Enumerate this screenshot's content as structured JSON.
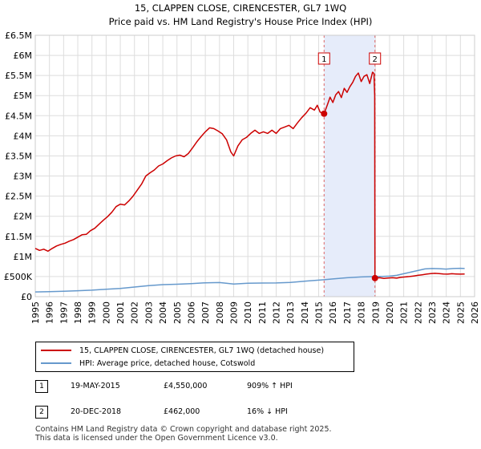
{
  "chart_data": {
    "type": "line",
    "title": "15, CLAPPEN CLOSE, CIRENCESTER, GL7 1WQ",
    "subtitle": "Price paid vs. HM Land Registry's House Price Index (HPI)",
    "x_range": [
      1995,
      2026
    ],
    "ylim": [
      0,
      6500000
    ],
    "x_ticks": [
      "1995",
      "1996",
      "1997",
      "1998",
      "1999",
      "2000",
      "2001",
      "2002",
      "2003",
      "2004",
      "2005",
      "2006",
      "2007",
      "2008",
      "2009",
      "2010",
      "2011",
      "2012",
      "2013",
      "2014",
      "2015",
      "2016",
      "2017",
      "2018",
      "2019",
      "2020",
      "2021",
      "2022",
      "2023",
      "2024",
      "2025",
      "2026"
    ],
    "y_ticks": [
      {
        "value": 0,
        "label": "£0"
      },
      {
        "value": 500000,
        "label": "£500K"
      },
      {
        "value": 1000000,
        "label": "£1M"
      },
      {
        "value": 1500000,
        "label": "£1.5M"
      },
      {
        "value": 2000000,
        "label": "£2M"
      },
      {
        "value": 2500000,
        "label": "£2.5M"
      },
      {
        "value": 3000000,
        "label": "£3M"
      },
      {
        "value": 3500000,
        "label": "£3.5M"
      },
      {
        "value": 4000000,
        "label": "£4M"
      },
      {
        "value": 4500000,
        "label": "£4.5M"
      },
      {
        "value": 5000000,
        "label": "£5M"
      },
      {
        "value": 5500000,
        "label": "£5.5M"
      },
      {
        "value": 6000000,
        "label": "£6M"
      },
      {
        "value": 6500000,
        "label": "£6.5M"
      }
    ],
    "shaded_range": [
      2015.38,
      2018.97
    ],
    "series": [
      {
        "name": "15, CLAPPEN CLOSE, CIRENCESTER, GL7 1WQ (detached house)",
        "color": "#cc0000",
        "points": [
          [
            1995.0,
            1200000
          ],
          [
            1995.3,
            1150000
          ],
          [
            1995.6,
            1180000
          ],
          [
            1995.9,
            1130000
          ],
          [
            1996.2,
            1200000
          ],
          [
            1996.5,
            1260000
          ],
          [
            1996.8,
            1300000
          ],
          [
            1997.1,
            1330000
          ],
          [
            1997.4,
            1380000
          ],
          [
            1997.7,
            1420000
          ],
          [
            1998.0,
            1480000
          ],
          [
            1998.3,
            1540000
          ],
          [
            1998.6,
            1550000
          ],
          [
            1998.9,
            1640000
          ],
          [
            1999.2,
            1700000
          ],
          [
            1999.5,
            1800000
          ],
          [
            1999.8,
            1900000
          ],
          [
            2000.1,
            1990000
          ],
          [
            2000.4,
            2100000
          ],
          [
            2000.7,
            2240000
          ],
          [
            2001.0,
            2300000
          ],
          [
            2001.3,
            2280000
          ],
          [
            2001.6,
            2380000
          ],
          [
            2001.9,
            2500000
          ],
          [
            2002.2,
            2650000
          ],
          [
            2002.5,
            2800000
          ],
          [
            2002.8,
            3000000
          ],
          [
            2003.1,
            3080000
          ],
          [
            2003.4,
            3150000
          ],
          [
            2003.7,
            3250000
          ],
          [
            2004.0,
            3300000
          ],
          [
            2004.3,
            3380000
          ],
          [
            2004.6,
            3450000
          ],
          [
            2004.9,
            3500000
          ],
          [
            2005.2,
            3520000
          ],
          [
            2005.5,
            3480000
          ],
          [
            2005.8,
            3560000
          ],
          [
            2006.1,
            3700000
          ],
          [
            2006.4,
            3850000
          ],
          [
            2006.7,
            3980000
          ],
          [
            2007.0,
            4100000
          ],
          [
            2007.3,
            4200000
          ],
          [
            2007.6,
            4180000
          ],
          [
            2007.9,
            4120000
          ],
          [
            2008.2,
            4050000
          ],
          [
            2008.5,
            3900000
          ],
          [
            2008.8,
            3600000
          ],
          [
            2009.0,
            3500000
          ],
          [
            2009.3,
            3750000
          ],
          [
            2009.6,
            3900000
          ],
          [
            2009.9,
            3960000
          ],
          [
            2010.2,
            4060000
          ],
          [
            2010.5,
            4140000
          ],
          [
            2010.8,
            4060000
          ],
          [
            2011.1,
            4100000
          ],
          [
            2011.4,
            4060000
          ],
          [
            2011.7,
            4140000
          ],
          [
            2012.0,
            4060000
          ],
          [
            2012.3,
            4180000
          ],
          [
            2012.6,
            4220000
          ],
          [
            2012.9,
            4260000
          ],
          [
            2013.2,
            4180000
          ],
          [
            2013.5,
            4320000
          ],
          [
            2013.8,
            4450000
          ],
          [
            2014.1,
            4560000
          ],
          [
            2014.4,
            4700000
          ],
          [
            2014.7,
            4640000
          ],
          [
            2014.9,
            4760000
          ],
          [
            2015.1,
            4590000
          ],
          [
            2015.38,
            4550000
          ],
          [
            2015.6,
            4760000
          ],
          [
            2015.8,
            4960000
          ],
          [
            2016.0,
            4830000
          ],
          [
            2016.2,
            5020000
          ],
          [
            2016.4,
            5100000
          ],
          [
            2016.6,
            4950000
          ],
          [
            2016.8,
            5180000
          ],
          [
            2017.0,
            5080000
          ],
          [
            2017.2,
            5220000
          ],
          [
            2017.4,
            5330000
          ],
          [
            2017.6,
            5480000
          ],
          [
            2017.8,
            5560000
          ],
          [
            2018.0,
            5350000
          ],
          [
            2018.2,
            5480000
          ],
          [
            2018.4,
            5520000
          ],
          [
            2018.6,
            5300000
          ],
          [
            2018.8,
            5580000
          ],
          [
            2018.9,
            5550000
          ],
          [
            2018.95,
            5000000
          ],
          [
            2018.97,
            462000
          ],
          [
            2019.3,
            470000
          ],
          [
            2019.6,
            455000
          ],
          [
            2019.9,
            465000
          ],
          [
            2020.2,
            470000
          ],
          [
            2020.5,
            460000
          ],
          [
            2020.8,
            480000
          ],
          [
            2021.1,
            490000
          ],
          [
            2021.4,
            500000
          ],
          [
            2021.7,
            515000
          ],
          [
            2022.0,
            530000
          ],
          [
            2022.3,
            545000
          ],
          [
            2022.6,
            560000
          ],
          [
            2022.9,
            575000
          ],
          [
            2023.2,
            580000
          ],
          [
            2023.5,
            575000
          ],
          [
            2023.8,
            565000
          ],
          [
            2024.1,
            560000
          ],
          [
            2024.4,
            570000
          ],
          [
            2024.7,
            565000
          ],
          [
            2025.0,
            560000
          ],
          [
            2025.3,
            565000
          ]
        ]
      },
      {
        "name": "HPI: Average price, detached house, Cotswold",
        "color": "#6699cc",
        "points": [
          [
            1995.0,
            118000
          ],
          [
            1996.0,
            125000
          ],
          [
            1997.0,
            135000
          ],
          [
            1998.0,
            148000
          ],
          [
            1999.0,
            162000
          ],
          [
            2000.0,
            185000
          ],
          [
            2001.0,
            205000
          ],
          [
            2002.0,
            240000
          ],
          [
            2003.0,
            275000
          ],
          [
            2004.0,
            300000
          ],
          [
            2005.0,
            310000
          ],
          [
            2006.0,
            325000
          ],
          [
            2007.0,
            345000
          ],
          [
            2008.0,
            350000
          ],
          [
            2009.0,
            315000
          ],
          [
            2010.0,
            335000
          ],
          [
            2011.0,
            338000
          ],
          [
            2012.0,
            340000
          ],
          [
            2013.0,
            355000
          ],
          [
            2014.0,
            385000
          ],
          [
            2015.0,
            410000
          ],
          [
            2015.38,
            420000
          ],
          [
            2016.0,
            440000
          ],
          [
            2017.0,
            470000
          ],
          [
            2018.0,
            490000
          ],
          [
            2018.97,
            500000
          ],
          [
            2019.5,
            505000
          ],
          [
            2020.0,
            510000
          ],
          [
            2020.5,
            530000
          ],
          [
            2021.0,
            570000
          ],
          [
            2021.5,
            610000
          ],
          [
            2022.0,
            650000
          ],
          [
            2022.5,
            690000
          ],
          [
            2023.0,
            700000
          ],
          [
            2023.5,
            695000
          ],
          [
            2024.0,
            685000
          ],
          [
            2024.5,
            700000
          ],
          [
            2025.0,
            705000
          ],
          [
            2025.3,
            700000
          ]
        ]
      }
    ],
    "sales": [
      {
        "id": "1",
        "x": 2015.38,
        "y": 4550000
      },
      {
        "id": "2",
        "x": 2018.97,
        "y": 462000
      }
    ],
    "grid": true
  },
  "legend": {
    "items": [
      {
        "label": "15, CLAPPEN CLOSE, CIRENCESTER, GL7 1WQ (detached house)",
        "color": "#cc0000"
      },
      {
        "label": "HPI: Average price, detached house, Cotswold",
        "color": "#6699cc"
      }
    ]
  },
  "sales_table": [
    {
      "num": "1",
      "date": "19-MAY-2015",
      "price": "£4,550,000",
      "hpi": "909% ↑ HPI"
    },
    {
      "num": "2",
      "date": "20-DEC-2018",
      "price": "£462,000",
      "hpi": "16% ↓ HPI"
    }
  ],
  "footer": {
    "line1": "Contains HM Land Registry data © Crown copyright and database right 2025.",
    "line2": "This data is licensed under the Open Government Licence v3.0."
  }
}
